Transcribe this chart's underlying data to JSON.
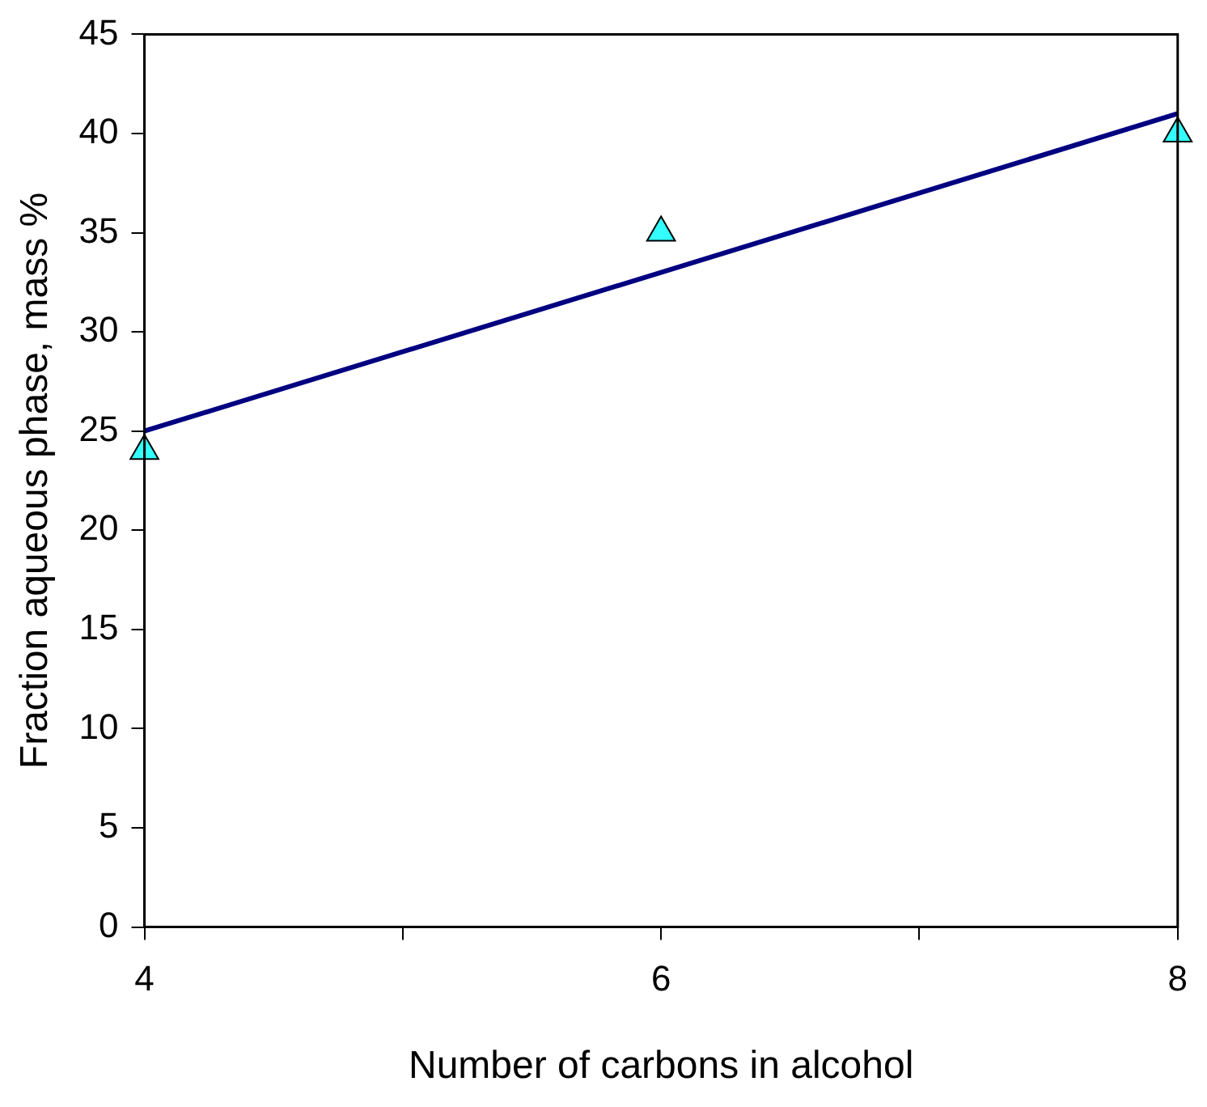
{
  "chart_data": {
    "type": "scatter",
    "xlabel": "Number of carbons in alcohol",
    "ylabel": "Fraction aqueous phase, mass %",
    "xlim": [
      4,
      8
    ],
    "xticks": [
      4,
      {
        "value": 5,
        "label": null
      },
      6,
      {
        "value": 7,
        "label": null
      },
      8
    ],
    "ylim": [
      0,
      45
    ],
    "yticks": [
      0,
      5,
      10,
      15,
      20,
      25,
      30,
      35,
      40,
      45
    ],
    "grid": false,
    "legend": false,
    "series": [
      {
        "x": [
          4,
          6,
          8
        ],
        "values": [
          24,
          35,
          40
        ],
        "color": "#33ffff",
        "marker": "triangle"
      },
      {
        "type": "line",
        "x": [
          4,
          8
        ],
        "values": [
          25,
          41
        ],
        "color": "#000080",
        "marker": "none",
        "line_style": "solid"
      }
    ]
  }
}
